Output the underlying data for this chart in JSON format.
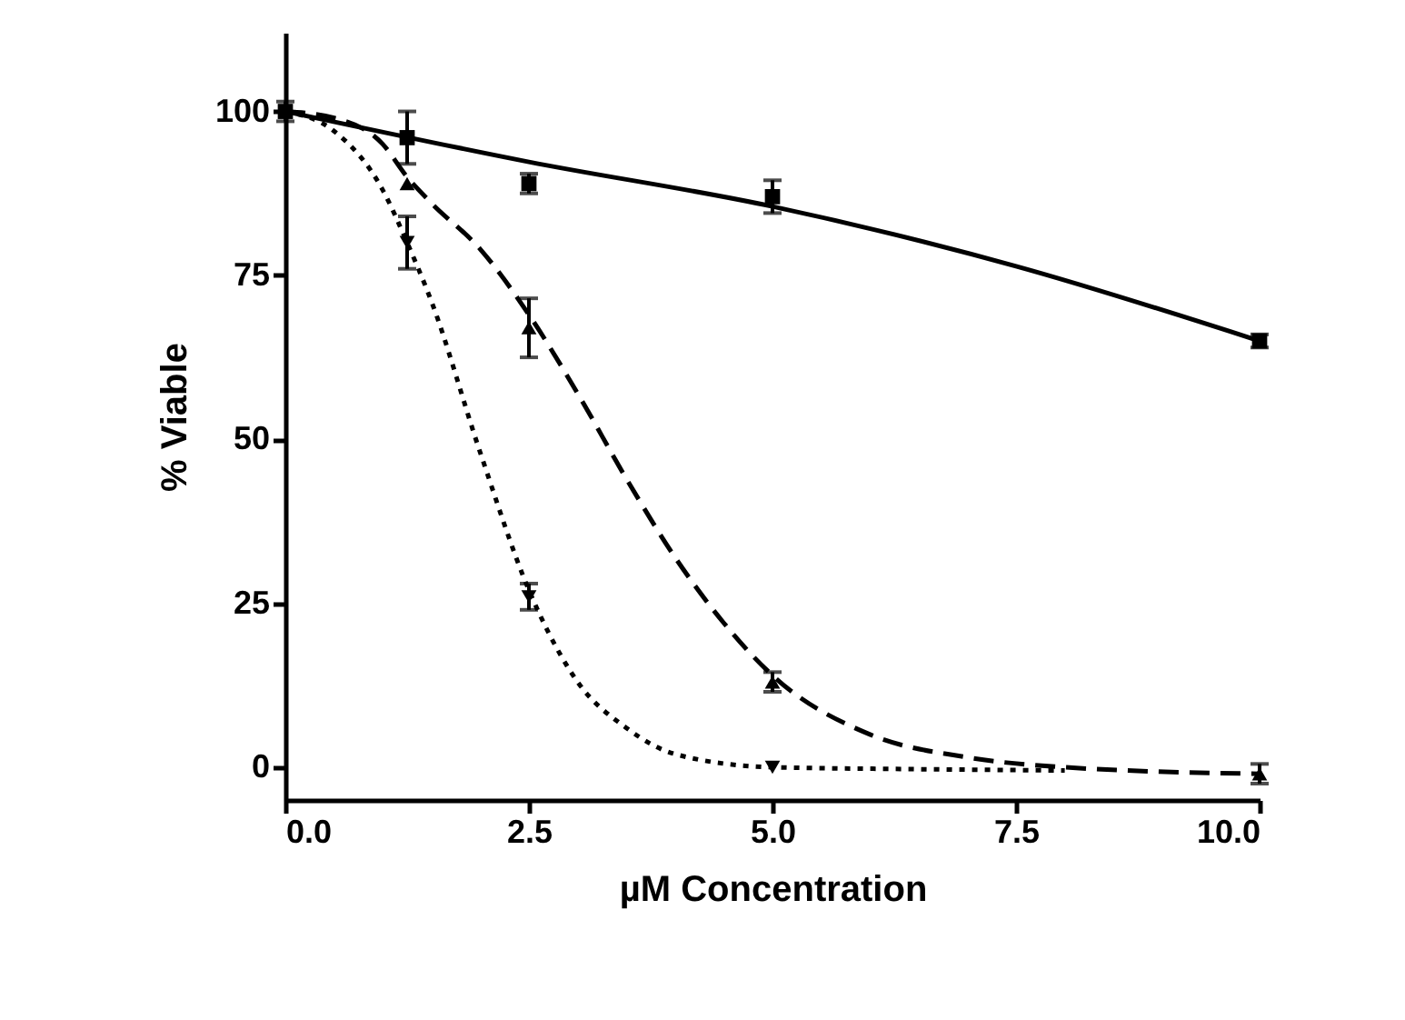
{
  "chart_data": {
    "type": "scatter",
    "xlabel": "µM Concentration",
    "ylabel": "% Viable",
    "xlim": [
      0,
      10
    ],
    "ylim": [
      -5,
      112
    ],
    "xticks": [
      {
        "value": 0,
        "label": "0.0"
      },
      {
        "value": 2.5,
        "label": "2.5"
      },
      {
        "value": 5,
        "label": "5.0"
      },
      {
        "value": 7.5,
        "label": "7.5"
      },
      {
        "value": 10,
        "label": "10.0"
      }
    ],
    "yticks": [
      0,
      25,
      50,
      75,
      100
    ],
    "grid": false,
    "series": [
      {
        "marker": "square",
        "color": "#000000",
        "x": [
          0,
          1.25,
          2.5,
          5,
          10
        ],
        "values": [
          100,
          96,
          89,
          87,
          65
        ],
        "errors": [
          1.5,
          4,
          1.5,
          2.5,
          1
        ]
      },
      {
        "marker": "triangle",
        "color": "#000000",
        "x": [
          1.25,
          2.5,
          5,
          10
        ],
        "values": [
          89,
          67,
          13,
          -1
        ],
        "errors": [
          null,
          4.5,
          1.5,
          1.5
        ]
      },
      {
        "marker": "triangle-down",
        "color": "#000000",
        "x": [
          1.25,
          2.5,
          5
        ],
        "values": [
          80,
          26,
          0
        ],
        "errors": [
          4,
          2,
          null
        ]
      },
      {
        "type": "line",
        "line_style": "solid",
        "color": "#000000",
        "x": [
          0,
          2.5,
          5,
          7.5,
          10
        ],
        "values": [
          100,
          92.3,
          85.5,
          76.4,
          65
        ]
      },
      {
        "type": "line",
        "line_style": "dashed",
        "color": "#000000",
        "x": [
          0,
          0.5,
          1,
          1.25,
          1.5,
          2,
          2.5,
          3,
          3.5,
          4,
          4.5,
          5,
          6,
          7,
          8,
          10
        ],
        "values": [
          100,
          99,
          95,
          90,
          86,
          79,
          69,
          57,
          44,
          32,
          22,
          14,
          5,
          1.5,
          0,
          -1
        ]
      },
      {
        "type": "line",
        "line_style": "dotted",
        "color": "#000000",
        "x": [
          0,
          0.5,
          1,
          1.25,
          1.5,
          2,
          2.5,
          3,
          3.5,
          4,
          5,
          6.5,
          8
        ],
        "values": [
          100,
          97,
          88,
          80,
          71,
          48,
          27,
          13,
          6,
          2,
          0,
          -0.3,
          -0.5
        ]
      }
    ]
  }
}
